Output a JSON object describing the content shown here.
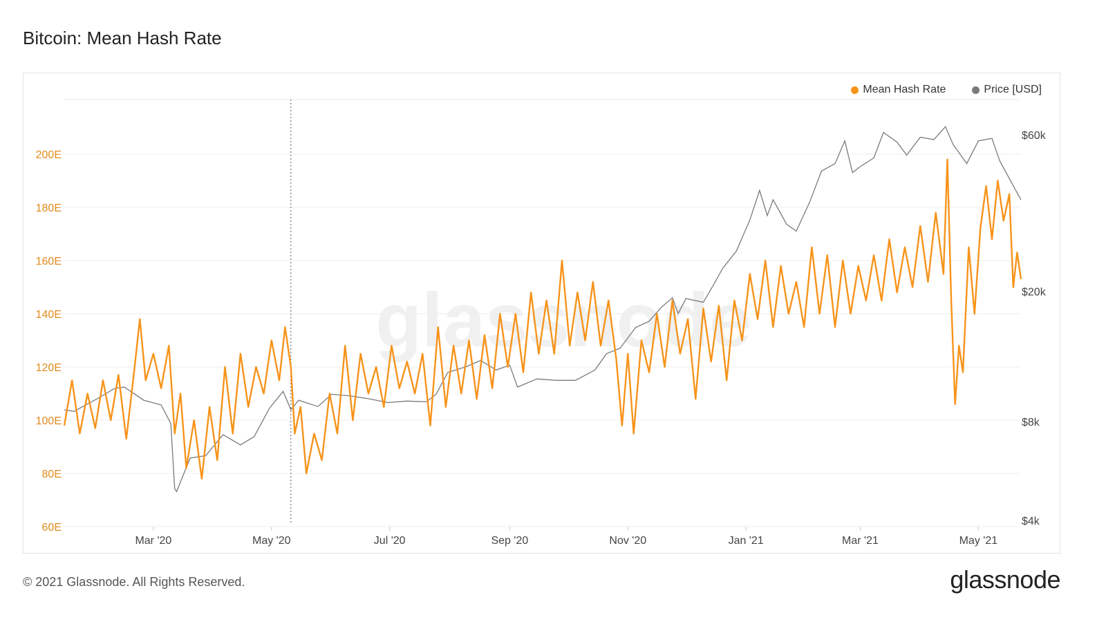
{
  "title": "Bitcoin: Mean Hash Rate",
  "footer": {
    "copyright": "© 2021 Glassnode. All Rights Reserved.",
    "brand": "glassnode"
  },
  "watermark": "glassnode",
  "colors": {
    "hash_rate": "#F7931A",
    "price": "#7a7a7a",
    "left_axis_text": "#E08A1E",
    "right_axis_text": "#444444",
    "grid": "#eeeeee"
  },
  "chart_data": {
    "type": "line",
    "title": "Bitcoin: Mean Hash Rate",
    "x_ticks": [
      "Mar '20",
      "May '20",
      "Jul '20",
      "Sep '20",
      "Nov '20",
      "Jan '21",
      "Mar '21",
      "May '21"
    ],
    "x_tick_dates": [
      "2020-03-01",
      "2020-05-01",
      "2020-07-01",
      "2020-09-01",
      "2020-11-01",
      "2021-01-01",
      "2021-03-01",
      "2021-05-01"
    ],
    "x_range": [
      "2020-01-15",
      "2021-05-23"
    ],
    "y_left": {
      "label": "",
      "ticks": [
        "60E",
        "80E",
        "100E",
        "120E",
        "140E",
        "160E",
        "180E",
        "200E"
      ],
      "tick_values": [
        60,
        80,
        100,
        120,
        140,
        160,
        180,
        200
      ],
      "range": [
        60,
        220
      ],
      "unit": "E"
    },
    "y_right": {
      "label": "",
      "ticks": [
        "$4k",
        "$8k",
        "$20k",
        "$60k"
      ],
      "tick_values": [
        4000,
        8000,
        20000,
        60000
      ],
      "scale": "log",
      "range": [
        4000,
        80000
      ]
    },
    "annotation": {
      "type": "vertical-dotted-line",
      "date": "2020-05-11"
    },
    "legend": {
      "position": "top-right",
      "entries": [
        "Mean Hash Rate",
        "Price [USD]"
      ]
    },
    "series": [
      {
        "name": "Mean Hash Rate",
        "axis": "left",
        "points": [
          [
            "2020-01-15",
            98
          ],
          [
            "2020-01-19",
            115
          ],
          [
            "2020-01-23",
            95
          ],
          [
            "2020-01-27",
            110
          ],
          [
            "2020-01-31",
            97
          ],
          [
            "2020-02-04",
            115
          ],
          [
            "2020-02-08",
            100
          ],
          [
            "2020-02-12",
            117
          ],
          [
            "2020-02-16",
            93
          ],
          [
            "2020-02-20",
            118
          ],
          [
            "2020-02-23",
            138
          ],
          [
            "2020-02-26",
            115
          ],
          [
            "2020-03-01",
            125
          ],
          [
            "2020-03-05",
            112
          ],
          [
            "2020-03-09",
            128
          ],
          [
            "2020-03-12",
            95
          ],
          [
            "2020-03-15",
            110
          ],
          [
            "2020-03-18",
            82
          ],
          [
            "2020-03-22",
            100
          ],
          [
            "2020-03-26",
            78
          ],
          [
            "2020-03-30",
            105
          ],
          [
            "2020-04-03",
            85
          ],
          [
            "2020-04-07",
            120
          ],
          [
            "2020-04-11",
            95
          ],
          [
            "2020-04-15",
            125
          ],
          [
            "2020-04-19",
            105
          ],
          [
            "2020-04-23",
            120
          ],
          [
            "2020-04-27",
            110
          ],
          [
            "2020-05-01",
            130
          ],
          [
            "2020-05-05",
            115
          ],
          [
            "2020-05-08",
            135
          ],
          [
            "2020-05-11",
            120
          ],
          [
            "2020-05-13",
            95
          ],
          [
            "2020-05-16",
            105
          ],
          [
            "2020-05-19",
            80
          ],
          [
            "2020-05-23",
            95
          ],
          [
            "2020-05-27",
            85
          ],
          [
            "2020-05-31",
            110
          ],
          [
            "2020-06-04",
            95
          ],
          [
            "2020-06-08",
            128
          ],
          [
            "2020-06-12",
            100
          ],
          [
            "2020-06-16",
            125
          ],
          [
            "2020-06-20",
            110
          ],
          [
            "2020-06-24",
            120
          ],
          [
            "2020-06-28",
            105
          ],
          [
            "2020-07-02",
            128
          ],
          [
            "2020-07-06",
            112
          ],
          [
            "2020-07-10",
            122
          ],
          [
            "2020-07-14",
            110
          ],
          [
            "2020-07-18",
            125
          ],
          [
            "2020-07-22",
            98
          ],
          [
            "2020-07-26",
            135
          ],
          [
            "2020-07-30",
            105
          ],
          [
            "2020-08-03",
            128
          ],
          [
            "2020-08-07",
            110
          ],
          [
            "2020-08-11",
            130
          ],
          [
            "2020-08-15",
            108
          ],
          [
            "2020-08-19",
            132
          ],
          [
            "2020-08-23",
            112
          ],
          [
            "2020-08-27",
            140
          ],
          [
            "2020-08-31",
            120
          ],
          [
            "2020-09-04",
            140
          ],
          [
            "2020-09-08",
            118
          ],
          [
            "2020-09-12",
            148
          ],
          [
            "2020-09-16",
            125
          ],
          [
            "2020-09-20",
            145
          ],
          [
            "2020-09-24",
            125
          ],
          [
            "2020-09-28",
            160
          ],
          [
            "2020-10-02",
            128
          ],
          [
            "2020-10-06",
            148
          ],
          [
            "2020-10-10",
            130
          ],
          [
            "2020-10-14",
            152
          ],
          [
            "2020-10-18",
            128
          ],
          [
            "2020-10-22",
            145
          ],
          [
            "2020-10-26",
            123
          ],
          [
            "2020-10-29",
            98
          ],
          [
            "2020-11-01",
            125
          ],
          [
            "2020-11-04",
            95
          ],
          [
            "2020-11-08",
            130
          ],
          [
            "2020-11-12",
            118
          ],
          [
            "2020-11-16",
            140
          ],
          [
            "2020-11-20",
            120
          ],
          [
            "2020-11-24",
            145
          ],
          [
            "2020-11-28",
            125
          ],
          [
            "2020-12-02",
            138
          ],
          [
            "2020-12-06",
            108
          ],
          [
            "2020-12-10",
            142
          ],
          [
            "2020-12-14",
            122
          ],
          [
            "2020-12-18",
            143
          ],
          [
            "2020-12-22",
            115
          ],
          [
            "2020-12-26",
            145
          ],
          [
            "2020-12-30",
            130
          ],
          [
            "2021-01-03",
            155
          ],
          [
            "2021-01-07",
            138
          ],
          [
            "2021-01-11",
            160
          ],
          [
            "2021-01-15",
            135
          ],
          [
            "2021-01-19",
            158
          ],
          [
            "2021-01-23",
            140
          ],
          [
            "2021-01-27",
            152
          ],
          [
            "2021-01-31",
            135
          ],
          [
            "2021-02-04",
            165
          ],
          [
            "2021-02-08",
            140
          ],
          [
            "2021-02-12",
            162
          ],
          [
            "2021-02-16",
            135
          ],
          [
            "2021-02-20",
            160
          ],
          [
            "2021-02-24",
            140
          ],
          [
            "2021-02-28",
            158
          ],
          [
            "2021-03-04",
            145
          ],
          [
            "2021-03-08",
            162
          ],
          [
            "2021-03-12",
            145
          ],
          [
            "2021-03-16",
            168
          ],
          [
            "2021-03-20",
            148
          ],
          [
            "2021-03-24",
            165
          ],
          [
            "2021-03-28",
            150
          ],
          [
            "2021-04-01",
            173
          ],
          [
            "2021-04-05",
            152
          ],
          [
            "2021-04-09",
            178
          ],
          [
            "2021-04-13",
            155
          ],
          [
            "2021-04-15",
            198
          ],
          [
            "2021-04-17",
            145
          ],
          [
            "2021-04-19",
            106
          ],
          [
            "2021-04-21",
            128
          ],
          [
            "2021-04-23",
            118
          ],
          [
            "2021-04-26",
            165
          ],
          [
            "2021-04-29",
            140
          ],
          [
            "2021-05-02",
            172
          ],
          [
            "2021-05-05",
            188
          ],
          [
            "2021-05-08",
            168
          ],
          [
            "2021-05-11",
            190
          ],
          [
            "2021-05-14",
            175
          ],
          [
            "2021-05-17",
            185
          ],
          [
            "2021-05-19",
            150
          ],
          [
            "2021-05-21",
            163
          ],
          [
            "2021-05-23",
            153
          ]
        ]
      },
      {
        "name": "Price [USD]",
        "axis": "right",
        "points": [
          [
            "2020-01-15",
            8700
          ],
          [
            "2020-01-20",
            8600
          ],
          [
            "2020-02-01",
            9400
          ],
          [
            "2020-02-10",
            10100
          ],
          [
            "2020-02-15",
            10200
          ],
          [
            "2020-02-25",
            9300
          ],
          [
            "2020-03-05",
            9000
          ],
          [
            "2020-03-10",
            7900
          ],
          [
            "2020-03-12",
            5000
          ],
          [
            "2020-03-13",
            4900
          ],
          [
            "2020-03-20",
            6200
          ],
          [
            "2020-03-28",
            6300
          ],
          [
            "2020-04-06",
            7300
          ],
          [
            "2020-04-15",
            6800
          ],
          [
            "2020-04-22",
            7200
          ],
          [
            "2020-04-30",
            8800
          ],
          [
            "2020-05-07",
            9900
          ],
          [
            "2020-05-11",
            8700
          ],
          [
            "2020-05-15",
            9300
          ],
          [
            "2020-05-25",
            8900
          ],
          [
            "2020-06-01",
            9700
          ],
          [
            "2020-06-10",
            9600
          ],
          [
            "2020-06-20",
            9400
          ],
          [
            "2020-06-30",
            9150
          ],
          [
            "2020-07-10",
            9250
          ],
          [
            "2020-07-20",
            9200
          ],
          [
            "2020-07-25",
            9700
          ],
          [
            "2020-07-31",
            11300
          ],
          [
            "2020-08-10",
            11800
          ],
          [
            "2020-08-17",
            12300
          ],
          [
            "2020-08-25",
            11500
          ],
          [
            "2020-09-01",
            11900
          ],
          [
            "2020-09-05",
            10200
          ],
          [
            "2020-09-15",
            10800
          ],
          [
            "2020-09-25",
            10700
          ],
          [
            "2020-10-05",
            10700
          ],
          [
            "2020-10-15",
            11500
          ],
          [
            "2020-10-21",
            12900
          ],
          [
            "2020-10-28",
            13400
          ],
          [
            "2020-11-05",
            15500
          ],
          [
            "2020-11-12",
            16200
          ],
          [
            "2020-11-18",
            17800
          ],
          [
            "2020-11-24",
            19100
          ],
          [
            "2020-11-27",
            17100
          ],
          [
            "2020-12-01",
            19000
          ],
          [
            "2020-12-10",
            18500
          ],
          [
            "2020-12-16",
            21300
          ],
          [
            "2020-12-20",
            23500
          ],
          [
            "2020-12-27",
            26500
          ],
          [
            "2021-01-03",
            33000
          ],
          [
            "2021-01-08",
            40600
          ],
          [
            "2021-01-12",
            34000
          ],
          [
            "2021-01-15",
            38000
          ],
          [
            "2021-01-22",
            32000
          ],
          [
            "2021-01-27",
            30500
          ],
          [
            "2021-02-03",
            37500
          ],
          [
            "2021-02-09",
            46500
          ],
          [
            "2021-02-16",
            49000
          ],
          [
            "2021-02-21",
            57500
          ],
          [
            "2021-02-25",
            46000
          ],
          [
            "2021-03-01",
            48000
          ],
          [
            "2021-03-08",
            51000
          ],
          [
            "2021-03-13",
            61000
          ],
          [
            "2021-03-20",
            57000
          ],
          [
            "2021-03-25",
            52000
          ],
          [
            "2021-04-01",
            59000
          ],
          [
            "2021-04-08",
            58000
          ],
          [
            "2021-04-14",
            63500
          ],
          [
            "2021-04-18",
            56000
          ],
          [
            "2021-04-25",
            49000
          ],
          [
            "2021-05-01",
            57500
          ],
          [
            "2021-05-08",
            58500
          ],
          [
            "2021-05-12",
            50000
          ],
          [
            "2021-05-18",
            43000
          ],
          [
            "2021-05-23",
            38000
          ]
        ]
      }
    ]
  }
}
